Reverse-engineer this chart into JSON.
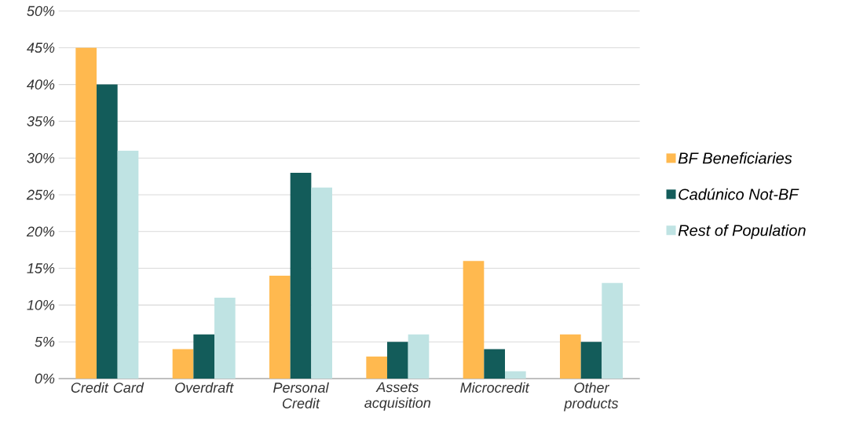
{
  "chart_data": {
    "type": "bar",
    "categories": [
      "Credit Card",
      "Overdraft",
      "Personal Credit",
      "Assets acquisition",
      "Microcredit",
      "Other products"
    ],
    "series": [
      {
        "name": "BF Beneficiaries",
        "color": "#ffb94f",
        "values": [
          45,
          4,
          14,
          3,
          16,
          6
        ]
      },
      {
        "name": "Cadúnico Not-BF",
        "color": "#135c5a",
        "values": [
          40,
          6,
          28,
          5,
          4,
          5
        ]
      },
      {
        "name": "Rest of Population",
        "color": "#bfe3e3",
        "values": [
          31,
          11,
          26,
          6,
          1,
          13
        ]
      }
    ],
    "ylim": [
      0,
      50
    ],
    "yticks": [
      {
        "value": 0,
        "label": "0%"
      },
      {
        "value": 5,
        "label": "5%"
      },
      {
        "value": 10,
        "label": "10%"
      },
      {
        "value": 15,
        "label": "15%"
      },
      {
        "value": 20,
        "label": "20%"
      },
      {
        "value": 25,
        "label": "25%"
      },
      {
        "value": 30,
        "label": "30%"
      },
      {
        "value": 35,
        "label": "35%"
      },
      {
        "value": 40,
        "label": "40%"
      },
      {
        "value": 45,
        "label": "45%"
      },
      {
        "value": 50,
        "label": "50%"
      }
    ],
    "grid": "y",
    "legend": "right"
  }
}
